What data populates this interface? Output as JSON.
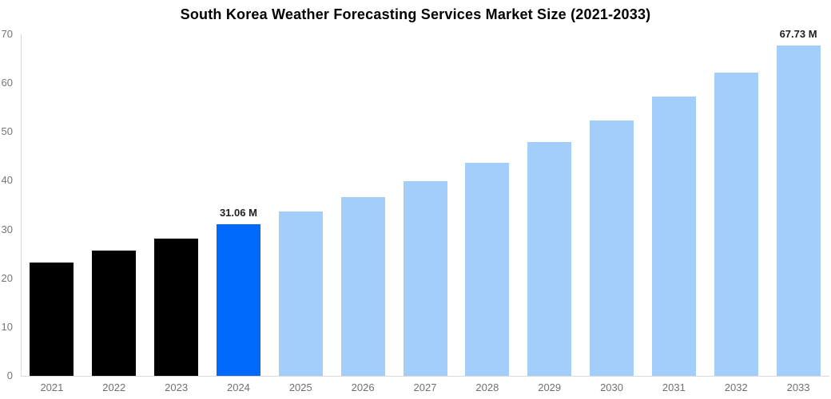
{
  "chart_data": {
    "type": "bar",
    "title": "South Korea Weather Forecasting Services Market Size (2021-2033)",
    "xlabel": "",
    "ylabel": "",
    "unit": "M",
    "ylim": [
      0,
      70
    ],
    "y_ticks": [
      0,
      10,
      20,
      30,
      40,
      50,
      60,
      70
    ],
    "grid": false,
    "legend": "none",
    "categories": [
      "2021",
      "2022",
      "2023",
      "2024",
      "2025",
      "2026",
      "2027",
      "2028",
      "2029",
      "2030",
      "2031",
      "2032",
      "2033"
    ],
    "values": [
      23.2,
      25.7,
      28.2,
      31.06,
      33.7,
      36.6,
      39.9,
      43.7,
      47.9,
      52.4,
      57.2,
      62.2,
      67.73
    ],
    "segments": [
      "historical",
      "historical",
      "historical",
      "highlight",
      "forecast",
      "forecast",
      "forecast",
      "forecast",
      "forecast",
      "forecast",
      "forecast",
      "forecast",
      "forecast"
    ],
    "annotations": [
      {
        "index": 3,
        "category": "2024",
        "text": "31.06 M"
      },
      {
        "index": 12,
        "category": "2033",
        "text": "67.73 M"
      }
    ]
  },
  "colors": {
    "historical": "#000000",
    "highlight": "#0068FB",
    "forecast": "#A3CEFB",
    "axis_line": "#D9D9D9",
    "y_tick_label": "#757575",
    "x_tick_label": "#707070",
    "value_label": "#1F1F1F",
    "title": "#000000",
    "background": "#FFFFFF"
  }
}
